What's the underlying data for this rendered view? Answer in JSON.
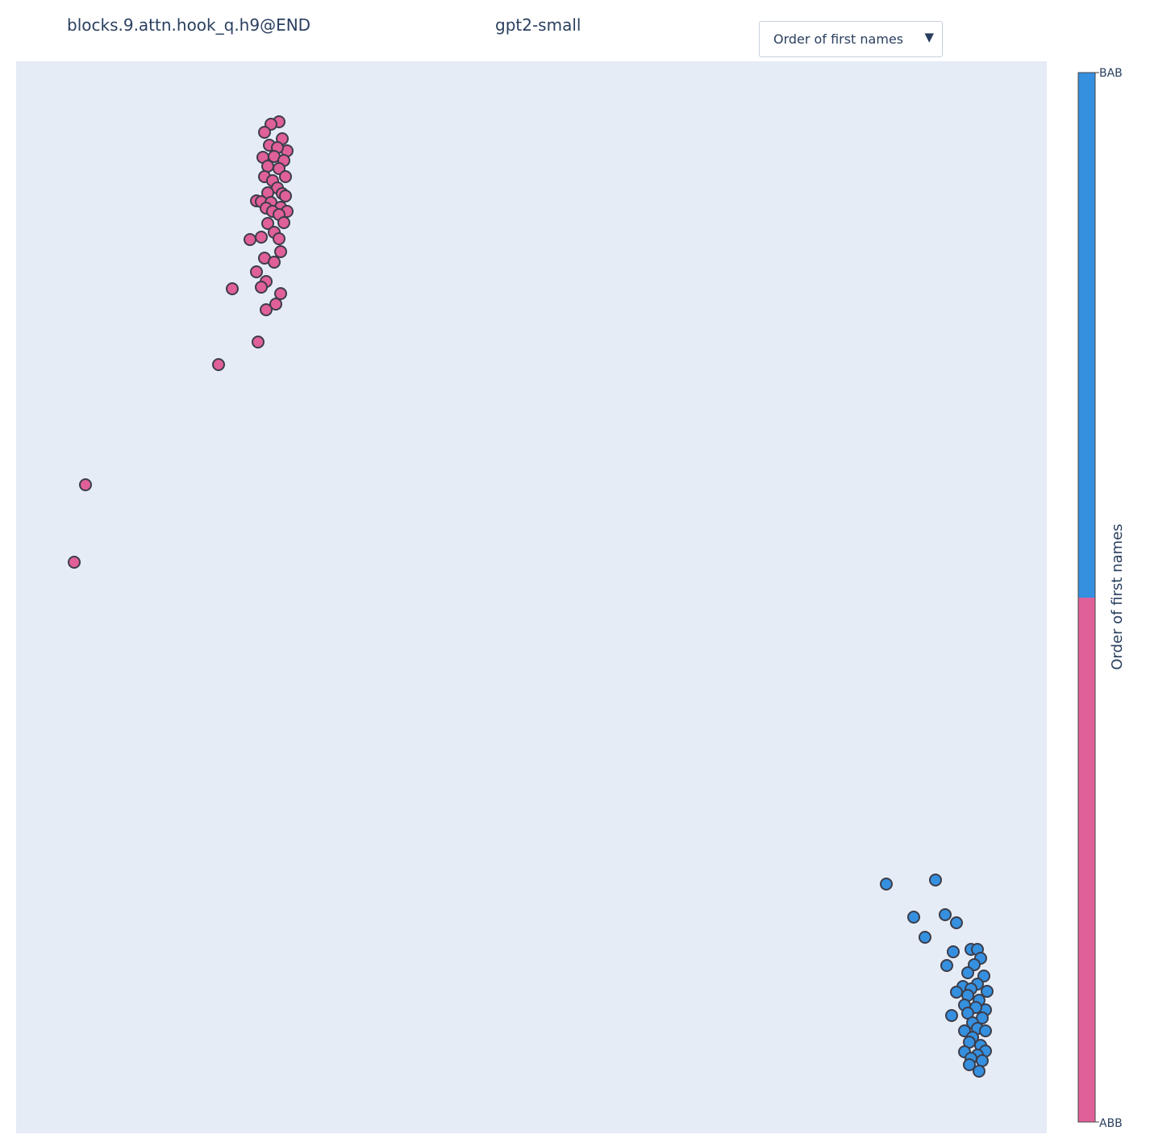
{
  "header": {
    "left_title": "blocks.9.attn.hook_q.h9@END",
    "center_title": "gpt2-small"
  },
  "dropdown": {
    "selected": "Order of first names",
    "arrow_icon": "triangle-down-icon"
  },
  "colors": {
    "plot_background": "#e5ecf6",
    "ABB": "#e0609a",
    "BAB": "#3590e0",
    "marker_outline": "#3d3d4a"
  },
  "colorbar": {
    "title": "Order of first names",
    "top_label": "BAB",
    "bottom_label": "ABB"
  },
  "chart_data": {
    "type": "scatter",
    "grid": false,
    "axes_visible": false,
    "xlim": [
      20,
      1298
    ],
    "ylim": [
      1405,
      76
    ],
    "series": [
      {
        "name": "ABB",
        "points": [
          [
            346,
            151
          ],
          [
            336,
            154
          ],
          [
            328,
            164
          ],
          [
            350,
            172
          ],
          [
            334,
            180
          ],
          [
            356,
            187
          ],
          [
            344,
            183
          ],
          [
            326,
            195
          ],
          [
            340,
            194
          ],
          [
            352,
            199
          ],
          [
            332,
            206
          ],
          [
            346,
            209
          ],
          [
            328,
            219
          ],
          [
            354,
            219
          ],
          [
            338,
            224
          ],
          [
            344,
            233
          ],
          [
            332,
            239
          ],
          [
            350,
            240
          ],
          [
            354,
            243
          ],
          [
            318,
            249
          ],
          [
            324,
            250
          ],
          [
            336,
            251
          ],
          [
            330,
            258
          ],
          [
            348,
            257
          ],
          [
            338,
            262
          ],
          [
            356,
            262
          ],
          [
            346,
            266
          ],
          [
            332,
            277
          ],
          [
            352,
            276
          ],
          [
            340,
            288
          ],
          [
            324,
            294
          ],
          [
            310,
            297
          ],
          [
            346,
            296
          ],
          [
            348,
            312
          ],
          [
            328,
            320
          ],
          [
            340,
            325
          ],
          [
            318,
            337
          ],
          [
            330,
            349
          ],
          [
            324,
            356
          ],
          [
            288,
            358
          ],
          [
            348,
            364
          ],
          [
            342,
            377
          ],
          [
            330,
            384
          ],
          [
            320,
            424
          ],
          [
            271,
            452
          ],
          [
            106,
            601
          ],
          [
            92,
            697
          ]
        ]
      },
      {
        "name": "BAB",
        "points": [
          [
            1160,
            1091
          ],
          [
            1099,
            1096
          ],
          [
            1133,
            1137
          ],
          [
            1172,
            1134
          ],
          [
            1186,
            1144
          ],
          [
            1147,
            1162
          ],
          [
            1182,
            1180
          ],
          [
            1204,
            1177
          ],
          [
            1212,
            1177
          ],
          [
            1216,
            1188
          ],
          [
            1174,
            1197
          ],
          [
            1208,
            1196
          ],
          [
            1200,
            1206
          ],
          [
            1220,
            1210
          ],
          [
            1212,
            1220
          ],
          [
            1194,
            1223
          ],
          [
            1204,
            1226
          ],
          [
            1224,
            1229
          ],
          [
            1186,
            1230
          ],
          [
            1200,
            1234
          ],
          [
            1214,
            1240
          ],
          [
            1196,
            1246
          ],
          [
            1222,
            1252
          ],
          [
            1210,
            1249
          ],
          [
            1180,
            1259
          ],
          [
            1200,
            1256
          ],
          [
            1218,
            1262
          ],
          [
            1206,
            1268
          ],
          [
            1212,
            1275
          ],
          [
            1196,
            1278
          ],
          [
            1222,
            1278
          ],
          [
            1206,
            1286
          ],
          [
            1202,
            1292
          ],
          [
            1216,
            1296
          ],
          [
            1196,
            1304
          ],
          [
            1222,
            1303
          ],
          [
            1212,
            1308
          ],
          [
            1204,
            1312
          ],
          [
            1218,
            1315
          ],
          [
            1202,
            1320
          ],
          [
            1214,
            1328
          ]
        ]
      }
    ]
  }
}
